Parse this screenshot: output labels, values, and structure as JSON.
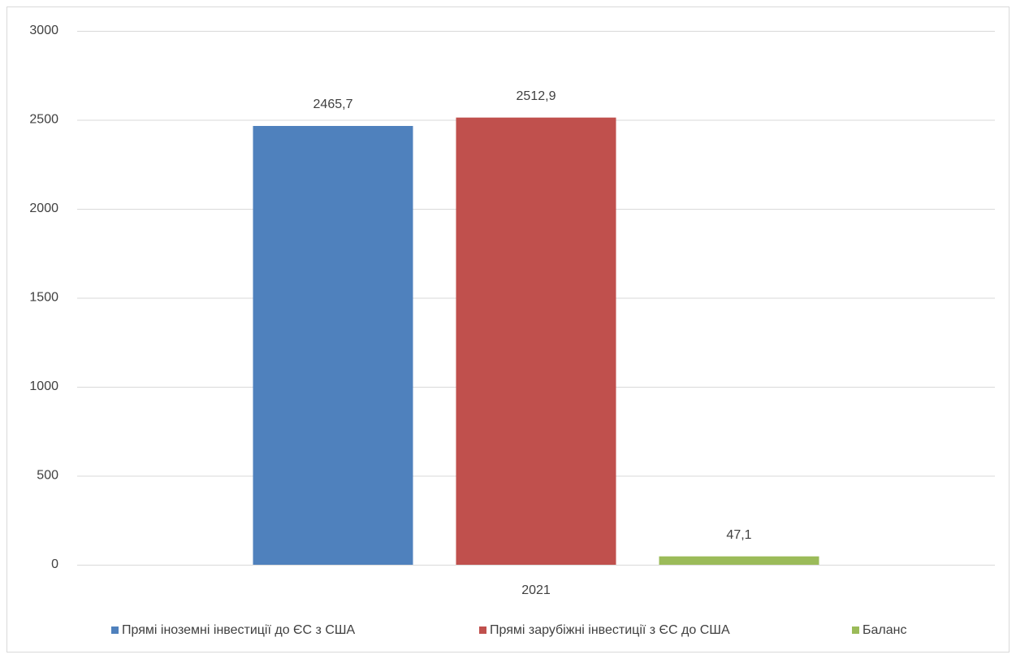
{
  "chart_data": {
    "type": "bar",
    "categories": [
      "2021"
    ],
    "series": [
      {
        "name": "Прямі іноземні інвестиції до ЄС з США",
        "color": "#4f81bd",
        "values": [
          2465.7
        ],
        "value_labels": [
          "2465,7"
        ]
      },
      {
        "name": "Прямі зарубіжні інвестиції з ЄС до США",
        "color": "#c0504d",
        "values": [
          2512.9
        ],
        "value_labels": [
          "2512,9"
        ]
      },
      {
        "name": "Баланс",
        "color": "#9bbb59",
        "values": [
          47.1
        ],
        "value_labels": [
          "47,1"
        ]
      }
    ],
    "ylim": [
      0,
      3000
    ],
    "yticks": [
      0,
      500,
      1000,
      1500,
      2000,
      2500,
      3000
    ],
    "grid": true,
    "legend": "bottom"
  }
}
